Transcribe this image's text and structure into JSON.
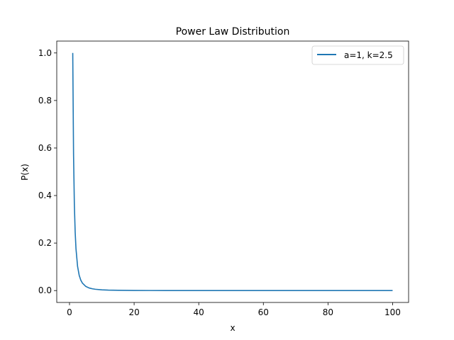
{
  "chart_data": {
    "type": "line",
    "title": "Power Law Distribution",
    "xlabel": "x",
    "ylabel": "P(x)",
    "xlim": [
      -3.95,
      104.95
    ],
    "ylim": [
      -0.05,
      1.05
    ],
    "xticks": [
      0,
      20,
      40,
      60,
      80,
      100
    ],
    "yticks": [
      0.0,
      0.2,
      0.4,
      0.6,
      0.8,
      1.0
    ],
    "xtick_labels": [
      "0",
      "20",
      "40",
      "60",
      "80",
      "100"
    ],
    "ytick_labels": [
      "0.0",
      "0.2",
      "0.4",
      "0.6",
      "0.8",
      "1.0"
    ],
    "grid": false,
    "legend_position": "top-right",
    "series": [
      {
        "name": "a=1, k=2.5",
        "color": "#1f77b4",
        "x": [
          1,
          1.25,
          1.5,
          1.75,
          2,
          2.5,
          3,
          3.5,
          4,
          5,
          6,
          7,
          8,
          10,
          12,
          15,
          20,
          25,
          30,
          40,
          50,
          60,
          70,
          80,
          90,
          100
        ],
        "y": [
          1.0,
          0.5724,
          0.3629,
          0.2469,
          0.1768,
          0.1012,
          0.0642,
          0.0437,
          0.0313,
          0.0179,
          0.0113,
          0.0077,
          0.0055,
          0.0032,
          0.002,
          0.0011,
          0.0006,
          0.0003,
          0.0002,
          0.0001,
          0.0001,
          0.0,
          0.0,
          0.0,
          0.0,
          0.0
        ]
      }
    ]
  }
}
